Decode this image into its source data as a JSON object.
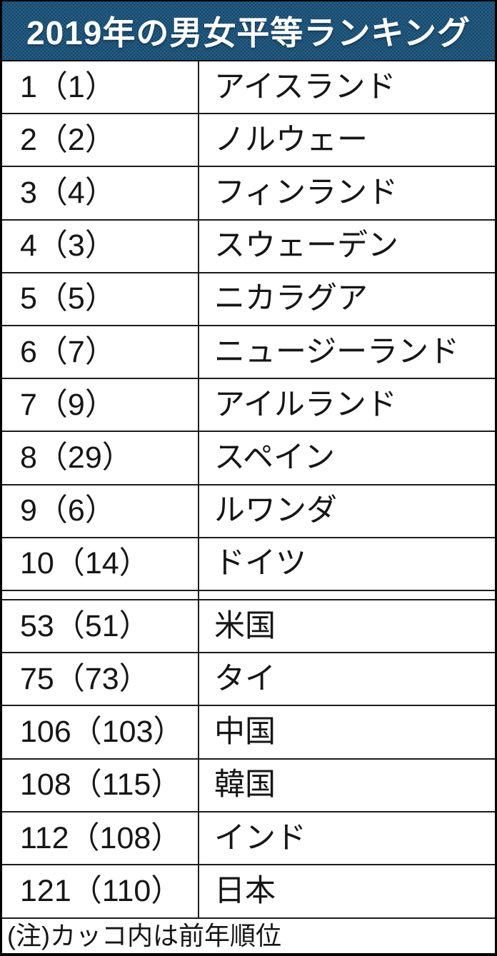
{
  "header": {
    "title": "2019年の男女平等ランキング"
  },
  "colors": {
    "header_bg": "#266089",
    "header_text": "#ffffff",
    "grid_line": "#1c1c1c",
    "outer_border": "#000000",
    "body_text": "#161616"
  },
  "table": {
    "rows_top": [
      {
        "rank": 1,
        "prev_rank": 1,
        "display": "1（1）",
        "country": "アイスランド"
      },
      {
        "rank": 2,
        "prev_rank": 2,
        "display": "2（2）",
        "country": "ノルウェー"
      },
      {
        "rank": 3,
        "prev_rank": 4,
        "display": "3（4）",
        "country": "フィンランド"
      },
      {
        "rank": 4,
        "prev_rank": 3,
        "display": "4（3）",
        "country": "スウェーデン"
      },
      {
        "rank": 5,
        "prev_rank": 5,
        "display": "5（5）",
        "country": "ニカラグア"
      },
      {
        "rank": 6,
        "prev_rank": 7,
        "display": "6（7）",
        "country": "ニュージーランド"
      },
      {
        "rank": 7,
        "prev_rank": 9,
        "display": "7（9）",
        "country": "アイルランド"
      },
      {
        "rank": 8,
        "prev_rank": 29,
        "display": "8（29）",
        "country": "スペイン"
      },
      {
        "rank": 9,
        "prev_rank": 6,
        "display": "9（6）",
        "country": "ルワンダ"
      },
      {
        "rank": 10,
        "prev_rank": 14,
        "display": "10（14）",
        "country": "ドイツ"
      }
    ],
    "rows_bottom": [
      {
        "rank": 53,
        "prev_rank": 51,
        "display": "53（51）",
        "country": "米国"
      },
      {
        "rank": 75,
        "prev_rank": 73,
        "display": "75（73）",
        "country": "タイ"
      },
      {
        "rank": 106,
        "prev_rank": 103,
        "display": "106（103）",
        "country": "中国"
      },
      {
        "rank": 108,
        "prev_rank": 115,
        "display": "108（115）",
        "country": "韓国"
      },
      {
        "rank": 112,
        "prev_rank": 108,
        "display": "112（108）",
        "country": "インド"
      },
      {
        "rank": 121,
        "prev_rank": 110,
        "display": "121（110）",
        "country": "日本"
      }
    ]
  },
  "note": {
    "text": "(注)カッコ内は前年順位"
  },
  "chart_data": {
    "type": "table",
    "title": "2019年の男女平等ランキング",
    "note": "(注)カッコ内は前年順位",
    "sections": [
      {
        "rows": [
          {
            "rank": 1,
            "prev_rank": 1,
            "country": "アイスランド"
          },
          {
            "rank": 2,
            "prev_rank": 2,
            "country": "ノルウェー"
          },
          {
            "rank": 3,
            "prev_rank": 4,
            "country": "フィンランド"
          },
          {
            "rank": 4,
            "prev_rank": 3,
            "country": "スウェーデン"
          },
          {
            "rank": 5,
            "prev_rank": 5,
            "country": "ニカラグア"
          },
          {
            "rank": 6,
            "prev_rank": 7,
            "country": "ニュージーランド"
          },
          {
            "rank": 7,
            "prev_rank": 9,
            "country": "アイルランド"
          },
          {
            "rank": 8,
            "prev_rank": 29,
            "country": "スペイン"
          },
          {
            "rank": 9,
            "prev_rank": 6,
            "country": "ルワンダ"
          },
          {
            "rank": 10,
            "prev_rank": 14,
            "country": "ドイツ"
          }
        ]
      },
      {
        "rows": [
          {
            "rank": 53,
            "prev_rank": 51,
            "country": "米国"
          },
          {
            "rank": 75,
            "prev_rank": 73,
            "country": "タイ"
          },
          {
            "rank": 106,
            "prev_rank": 103,
            "country": "中国"
          },
          {
            "rank": 108,
            "prev_rank": 115,
            "country": "韓国"
          },
          {
            "rank": 112,
            "prev_rank": 108,
            "country": "インド"
          },
          {
            "rank": 121,
            "prev_rank": 110,
            "country": "日本"
          }
        ]
      }
    ]
  }
}
